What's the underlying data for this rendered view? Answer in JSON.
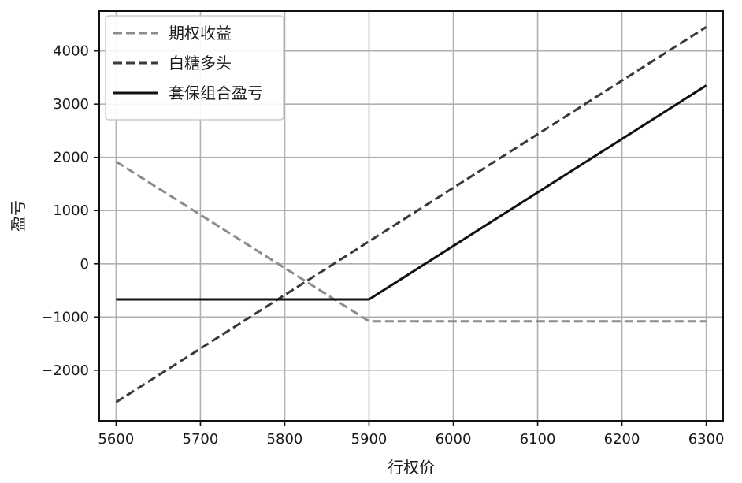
{
  "chart_data": {
    "type": "line",
    "title": "",
    "xlabel": "行权价",
    "ylabel": "盈亏",
    "xlim": [
      5580,
      6320
    ],
    "ylim": [
      -2950,
      4750
    ],
    "xticks": [
      5600,
      5700,
      5800,
      5900,
      6000,
      6100,
      6200,
      6300
    ],
    "yticks": [
      -2000,
      -1000,
      0,
      1000,
      2000,
      3000,
      4000
    ],
    "grid": true,
    "legend_position": "top-left",
    "series": [
      {
        "name": "期权收益",
        "style": "dashed",
        "color": "#8c8c8c",
        "x": [
          5600,
          5900,
          6300
        ],
        "y": [
          1920,
          -1080,
          -1080
        ]
      },
      {
        "name": "白糖多头",
        "style": "dashed",
        "color": "#3a3a3a",
        "x": [
          5600,
          6300
        ],
        "y": [
          -2600,
          4450
        ]
      },
      {
        "name": "套保组合盈亏",
        "style": "solid",
        "color": "#111111",
        "x": [
          5600,
          5900,
          6300
        ],
        "y": [
          -670,
          -670,
          3350
        ]
      }
    ]
  }
}
